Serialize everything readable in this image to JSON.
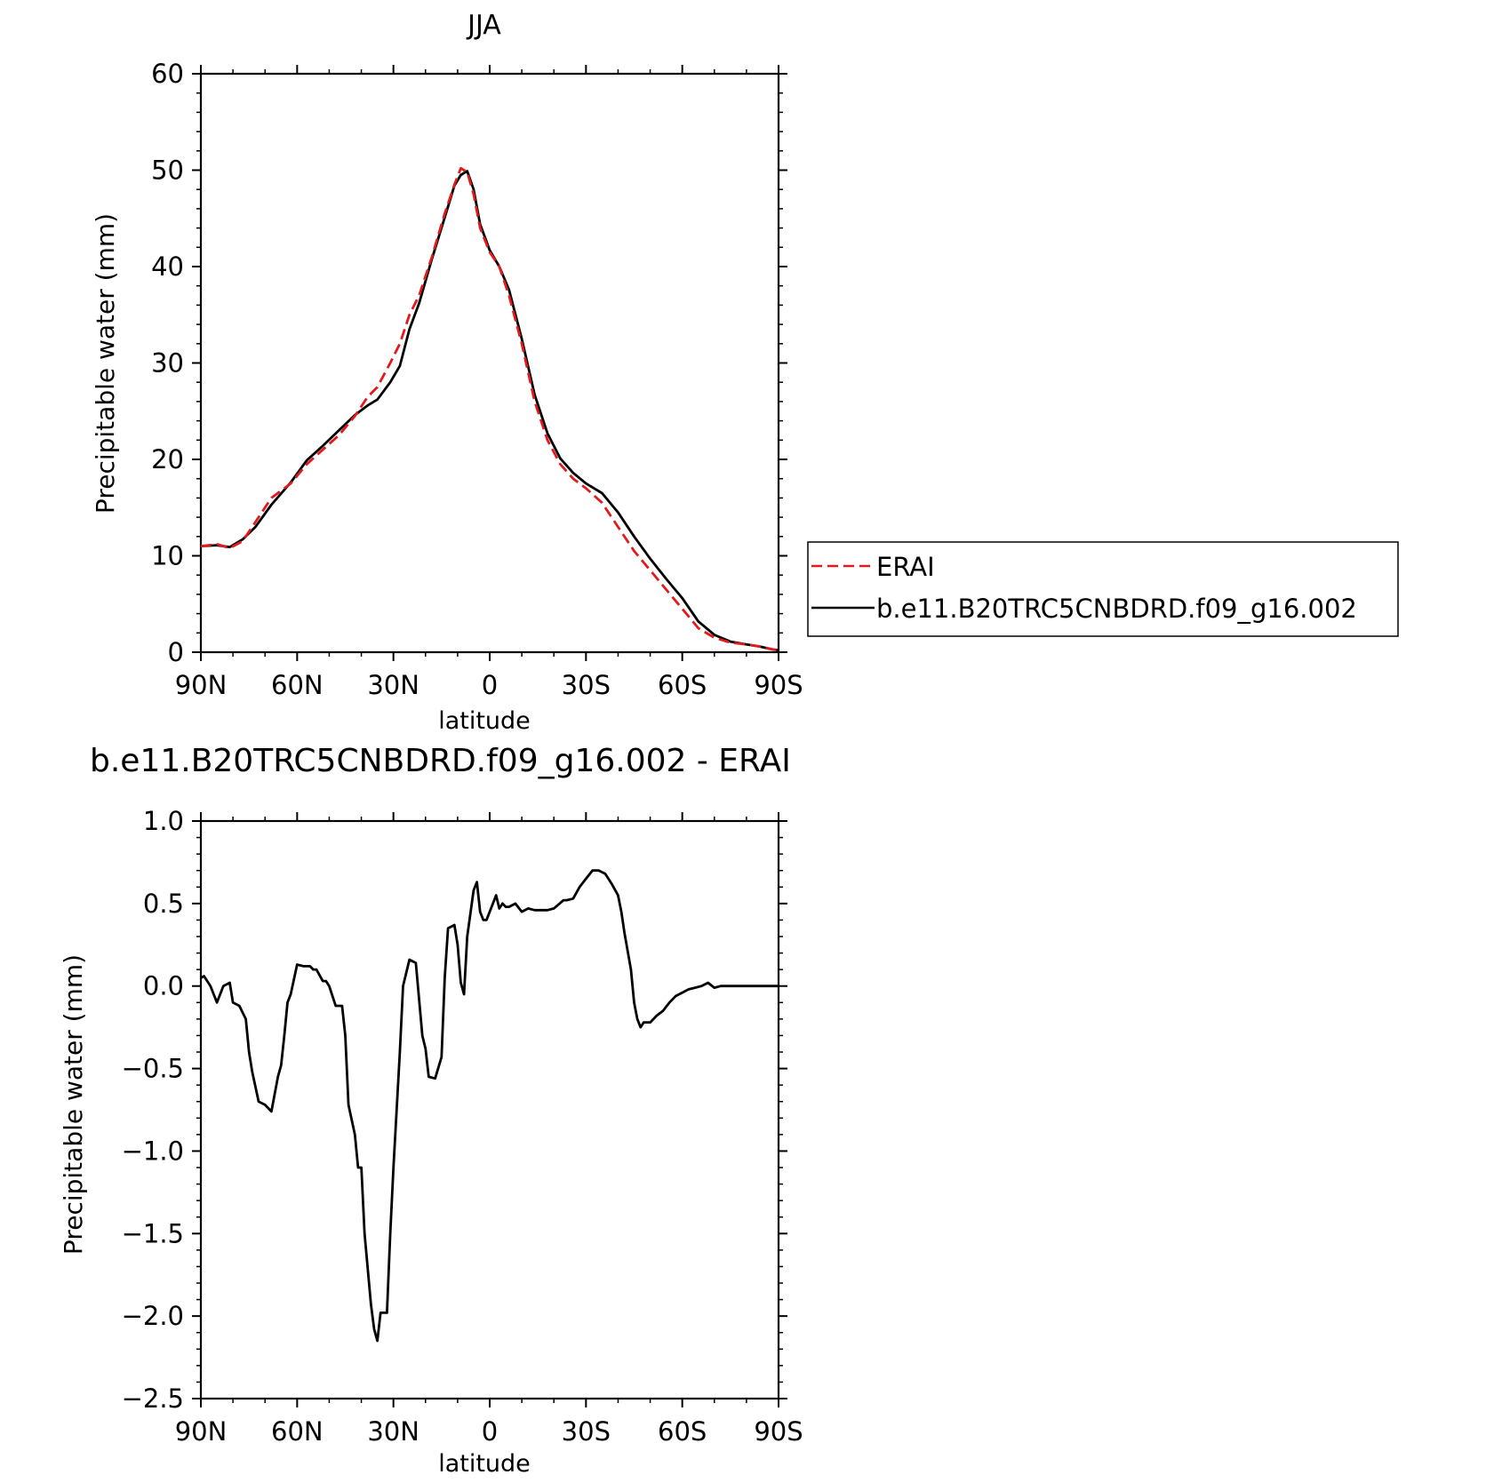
{
  "chart_data": [
    {
      "type": "line",
      "title": "JJA",
      "xlabel": "latitude",
      "ylabel": "Precipitable water (mm)",
      "xlim": [
        90,
        -90
      ],
      "ylim": [
        0,
        60
      ],
      "x_ticks": [
        {
          "value": 90,
          "label": "90N"
        },
        {
          "value": 60,
          "label": "60N"
        },
        {
          "value": 30,
          "label": "30N"
        },
        {
          "value": 0,
          "label": "0"
        },
        {
          "value": -30,
          "label": "30S"
        },
        {
          "value": -60,
          "label": "60S"
        },
        {
          "value": -90,
          "label": "90S"
        }
      ],
      "y_ticks": [
        {
          "value": 0,
          "label": "0"
        },
        {
          "value": 10,
          "label": "10"
        },
        {
          "value": 20,
          "label": "20"
        },
        {
          "value": 30,
          "label": "30"
        },
        {
          "value": 40,
          "label": "40"
        },
        {
          "value": 50,
          "label": "50"
        },
        {
          "value": 60,
          "label": "60"
        }
      ],
      "legend": {
        "placement": "right",
        "entries": [
          {
            "label": "ERAI",
            "color": "#e31a1c",
            "dash": "dashed"
          },
          {
            "label": "b.e11.B20TRC5CNBDRD.f09_g16.002",
            "color": "#000000",
            "dash": "solid"
          }
        ]
      },
      "series": [
        {
          "name": "ERAI",
          "color": "#e31a1c",
          "dash": "dashed",
          "x": [
            90,
            85,
            81,
            77,
            73,
            68,
            62,
            57,
            52,
            47,
            42,
            38,
            35,
            31,
            28,
            25,
            22,
            18,
            14,
            11,
            9,
            7,
            5,
            3,
            0,
            -3,
            -6,
            -10,
            -14,
            -18,
            -22,
            -26,
            -30,
            -35,
            -40,
            -45,
            -50,
            -55,
            -60,
            -65,
            -70,
            -75,
            -80,
            -84,
            -88,
            -90
          ],
          "y": [
            11,
            11.2,
            10.8,
            11.5,
            13.5,
            16,
            17.5,
            19.5,
            21,
            22.5,
            24.5,
            26.5,
            27.5,
            30,
            32,
            35,
            37,
            41,
            45.5,
            48.5,
            50.2,
            49.8,
            47.5,
            44,
            41.5,
            40,
            37,
            32,
            26,
            22,
            19.5,
            18,
            17,
            15.5,
            13,
            10.5,
            8.5,
            6.5,
            4.5,
            2.5,
            1.5,
            1,
            0.8,
            0.6,
            0.3,
            0.2
          ]
        },
        {
          "name": "b.e11.B20TRC5CNBDRD.f09_g16.002",
          "color": "#000000",
          "dash": "solid",
          "x": [
            90,
            85,
            81,
            77,
            73,
            68,
            62,
            57,
            52,
            47,
            42,
            38,
            35,
            31,
            28,
            25,
            22,
            18,
            14,
            11,
            9,
            7,
            5,
            3,
            0,
            -3,
            -6,
            -10,
            -14,
            -18,
            -22,
            -26,
            -30,
            -35,
            -40,
            -45,
            -50,
            -55,
            -60,
            -65,
            -70,
            -75,
            -80,
            -84,
            -88,
            -90
          ],
          "y": [
            11,
            11.1,
            10.9,
            11.7,
            13,
            15.3,
            17.6,
            19.9,
            21.4,
            23,
            24.6,
            25.6,
            26.2,
            28,
            29.7,
            33.5,
            36.2,
            40.8,
            45.1,
            48.4,
            49.5,
            49.9,
            48,
            44.4,
            41.7,
            40,
            37.6,
            32.5,
            26.7,
            22.7,
            20.1,
            18.6,
            17.5,
            16.5,
            14.5,
            12,
            9.7,
            7.6,
            5.6,
            3.2,
            1.8,
            1.1,
            0.8,
            0.6,
            0.3,
            0.2
          ]
        }
      ]
    },
    {
      "type": "line",
      "title": "b.e11.B20TRC5CNBDRD.f09_g16.002 - ERAI",
      "xlabel": "latitude",
      "ylabel": "Precipitable water (mm)",
      "xlim": [
        90,
        -90
      ],
      "ylim": [
        -2.5,
        1.0
      ],
      "x_ticks": [
        {
          "value": 90,
          "label": "90N"
        },
        {
          "value": 60,
          "label": "60N"
        },
        {
          "value": 30,
          "label": "30N"
        },
        {
          "value": 0,
          "label": "0"
        },
        {
          "value": -30,
          "label": "30S"
        },
        {
          "value": -60,
          "label": "60S"
        },
        {
          "value": -90,
          "label": "90S"
        }
      ],
      "y_ticks": [
        {
          "value": 1.0,
          "label": "1.0"
        },
        {
          "value": 0.5,
          "label": "0.5"
        },
        {
          "value": 0.0,
          "label": "0.0"
        },
        {
          "value": -0.5,
          "label": "−0.5"
        },
        {
          "value": -1.0,
          "label": "−1.0"
        },
        {
          "value": -1.5,
          "label": "−1.5"
        },
        {
          "value": -2.0,
          "label": "−2.0"
        },
        {
          "value": -2.5,
          "label": "−2.5"
        }
      ],
      "series": [
        {
          "color": "#000000",
          "dash": "solid",
          "x": [
            90,
            89,
            87,
            85,
            83,
            81,
            80,
            78,
            76,
            75,
            74,
            72,
            70,
            68,
            66,
            65,
            64,
            63,
            62,
            60,
            58,
            56,
            55,
            54,
            52,
            51,
            50,
            48,
            46,
            45,
            44,
            42,
            41,
            40,
            39,
            37,
            36,
            35,
            34,
            32,
            31,
            30,
            29,
            28,
            27,
            25,
            23,
            21,
            20,
            19,
            17,
            15,
            14,
            13,
            11,
            10,
            9,
            8,
            7,
            5,
            4,
            3,
            2,
            1,
            0,
            -1,
            -2,
            -3,
            -4,
            -5,
            -6,
            -8,
            -10,
            -12,
            -14,
            -16,
            -18,
            -20,
            -23,
            -24,
            -26,
            -28,
            -30,
            -32,
            -34,
            -36,
            -38,
            -40,
            -41,
            -42,
            -44,
            -45,
            -46,
            -47,
            -48,
            -50,
            -52,
            -54,
            -56,
            -58,
            -60,
            -62,
            -64,
            -66,
            -68,
            -70,
            -72,
            -74,
            -76,
            -78,
            -80,
            -82,
            -83,
            -85,
            -87,
            -88,
            -90
          ],
          "y": [
            0.05,
            0.06,
            0.0,
            -0.1,
            0.0,
            0.02,
            -0.1,
            -0.12,
            -0.2,
            -0.4,
            -0.52,
            -0.7,
            -0.72,
            -0.76,
            -0.55,
            -0.48,
            -0.3,
            -0.1,
            -0.05,
            0.13,
            0.12,
            0.12,
            0.1,
            0.1,
            0.03,
            0.03,
            0.0,
            -0.12,
            -0.12,
            -0.3,
            -0.72,
            -0.9,
            -1.1,
            -1.1,
            -1.5,
            -1.93,
            -2.08,
            -2.15,
            -1.98,
            -1.98,
            -1.5,
            -1.1,
            -0.75,
            -0.4,
            0.0,
            0.16,
            0.14,
            -0.3,
            -0.38,
            -0.55,
            -0.56,
            -0.43,
            0.05,
            0.35,
            0.37,
            0.25,
            0.02,
            -0.05,
            0.3,
            0.58,
            0.63,
            0.45,
            0.4,
            0.4,
            0.45,
            0.5,
            0.55,
            0.47,
            0.5,
            0.48,
            0.48,
            0.5,
            0.45,
            0.47,
            0.46,
            0.46,
            0.46,
            0.47,
            0.52,
            0.52,
            0.53,
            0.6,
            0.65,
            0.7,
            0.7,
            0.68,
            0.62,
            0.55,
            0.45,
            0.32,
            0.1,
            -0.1,
            -0.2,
            -0.25,
            -0.22,
            -0.22,
            -0.18,
            -0.15,
            -0.1,
            -0.06,
            -0.04,
            -0.02,
            -0.01,
            -0.0,
            0.02,
            -0.01,
            0.0,
            0.0,
            0.0,
            0.0,
            0.0,
            0.0,
            0.0,
            0.0,
            0.0,
            0.0,
            0.0
          ]
        }
      ]
    }
  ]
}
